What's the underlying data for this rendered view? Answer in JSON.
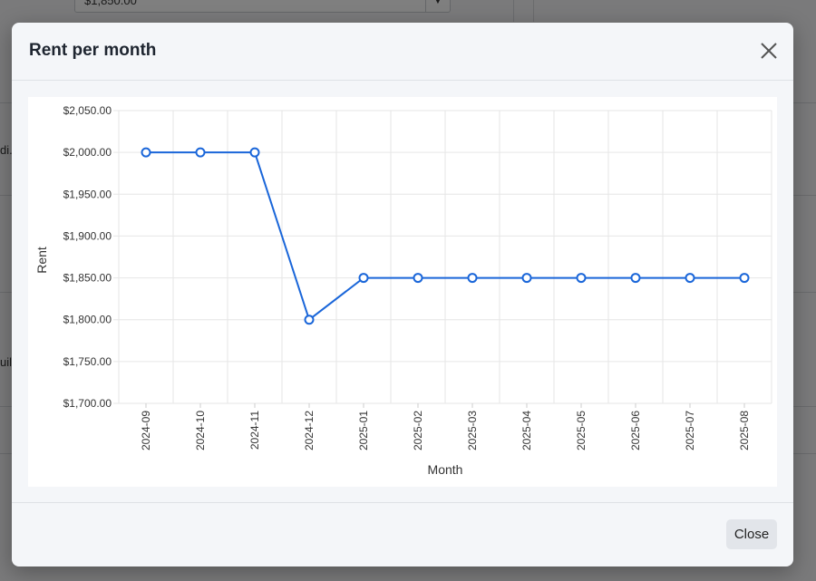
{
  "background": {
    "select_value": "$1,850.00",
    "row_fragments": [
      "di.",
      "uil."
    ]
  },
  "modal": {
    "title": "Rent per month",
    "close_label": "Close"
  },
  "chart_data": {
    "type": "line",
    "title": "",
    "xlabel": "Month",
    "ylabel": "Rent",
    "categories": [
      "2024-09",
      "2024-10",
      "2024-11",
      "2024-12",
      "2025-01",
      "2025-02",
      "2025-03",
      "2025-04",
      "2025-05",
      "2025-06",
      "2025-07",
      "2025-08"
    ],
    "series": [
      {
        "values": [
          2000,
          2000,
          2000,
          1800,
          1850,
          1850,
          1850,
          1850,
          1850,
          1850,
          1850,
          1850
        ],
        "color": "#1a66d9"
      }
    ],
    "ylim": [
      1700,
      2050
    ],
    "yticks": [
      1700,
      1750,
      1800,
      1850,
      1900,
      1950,
      2000,
      2050
    ],
    "ytick_labels": [
      "$1,700.00",
      "$1,750.00",
      "$1,800.00",
      "$1,850.00",
      "$1,900.00",
      "$1,950.00",
      "$2,000.00",
      "$2,050.00"
    ],
    "grid": true,
    "legend": "none"
  }
}
